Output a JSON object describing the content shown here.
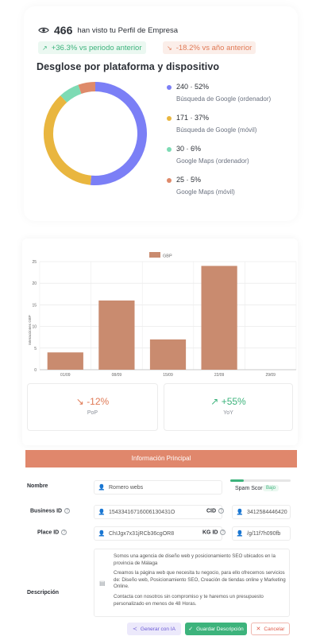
{
  "views": {
    "count": "466",
    "label": "han visto tu Perfil de Empresa",
    "period_change": "+36.3% vs periodo anterior",
    "year_change": "-18.2% vs año anterior"
  },
  "breakdown": {
    "title": "Desglose por plataforma y dispositivo",
    "items": [
      {
        "value": "240 · 52%",
        "name": "Búsqueda de Google (ordenador)",
        "count": 240,
        "color": "#7b7ff6"
      },
      {
        "value": "171 · 37%",
        "name": "Búsqueda de Google (móvil)",
        "count": 171,
        "color": "#e9b63f"
      },
      {
        "value": "30 · 6%",
        "name": "Google Maps (ordenador)",
        "count": 30,
        "color": "#7ddbb4"
      },
      {
        "value": "25 · 5%",
        "name": "Google Maps (móvil)",
        "count": 25,
        "color": "#de8a6a"
      }
    ]
  },
  "chart_data": {
    "type": "bar",
    "categories": [
      "01/09",
      "08/09",
      "15/09",
      "22/09",
      "29/09"
    ],
    "series": [
      {
        "name": "GBP",
        "values": [
          4,
          16,
          7,
          24,
          0
        ],
        "color": "#c98b6f"
      }
    ],
    "ylabel": "Interacciones GBP",
    "yticks": [
      0,
      5,
      10,
      15,
      20,
      25
    ],
    "ylim": [
      0,
      25
    ],
    "legend": "top-center",
    "grid": true
  },
  "stats": {
    "pop": {
      "value": "-12%",
      "label": "PoP"
    },
    "yoy": {
      "value": "+55%",
      "label": "YoY"
    }
  },
  "form": {
    "header": "Información Principal",
    "name_label": "Nombre",
    "name_value": "Romero webs",
    "spam_label": "Spam Score",
    "spam_badge": "Bajo",
    "spam_level": 0.22,
    "business_id_label": "Business ID",
    "business_id_value": "15433416716006130431O",
    "cid_label": "CID",
    "cid_value": "3412584446420",
    "place_id_label": "Place ID",
    "place_id_value": "ChIJgx7x31jRCb36cgOR8",
    "kgid_label": "KG ID",
    "kgid_value": "/g/11f7h090fb",
    "description_label": "Descripción",
    "description_p1": "Somos una agencia de diseño web y posicionamiento SEO ubicados en la provincia de Málaga",
    "description_p2": "Creamos la página web que necesita tu negocio, para ello ofrecemos servicios de: Diseño web, Posicionamiento SEO, Creación de tiendas online y Marketing Online.",
    "description_p3": "Contacta con nosotros sin compromiso y te haremos un presupuesto personalizado en menos de 48 Horas.",
    "btn_ai": "Generar con IA",
    "btn_save": "Guardar Descripción",
    "btn_cancel": "Cancelar"
  }
}
